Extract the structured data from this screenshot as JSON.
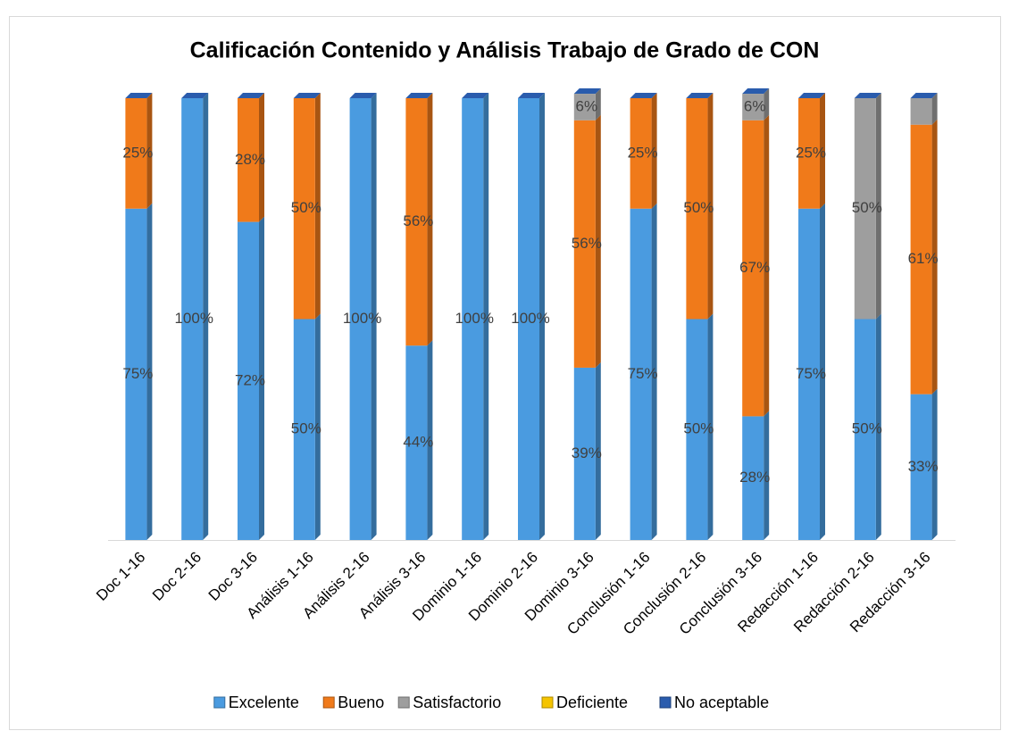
{
  "chart_data": {
    "type": "stacked_bar",
    "title": "Calificación Contenido y Análisis Trabajo de Grado de CON",
    "categories": [
      "Doc 1-16",
      "Doc 2-16",
      "Doc 3-16",
      "Análisis 1-16",
      "Análisis 2-16",
      "Análisis 3-16",
      "Dominio 1-16",
      "Dominio 2-16",
      "Dominio 3-16",
      "Conclusión 1-16",
      "Conclusión 2-16",
      "Conclusión 3-16",
      "Redacción 1-16",
      "Redacción 2-16",
      "Redacción 3-16"
    ],
    "series": [
      {
        "name": "Excelente",
        "color": "#4a9be0",
        "values": [
          75,
          100,
          72,
          50,
          100,
          44,
          100,
          100,
          39,
          75,
          50,
          28,
          75,
          50,
          33
        ],
        "value_labels": [
          "75%",
          "100%",
          "72%",
          "50%",
          "100%",
          "44%",
          "100%",
          "100%",
          "39%",
          "75%",
          "50%",
          "28%",
          "75%",
          "50%",
          "33%"
        ]
      },
      {
        "name": "Bueno",
        "color": "#f07a1a",
        "values": [
          25,
          0,
          28,
          50,
          0,
          56,
          0,
          0,
          56,
          25,
          50,
          67,
          25,
          0,
          61
        ],
        "value_labels": [
          "25%",
          null,
          "28%",
          "50%",
          null,
          "56%",
          null,
          null,
          "56%",
          "25%",
          "50%",
          "67%",
          "25%",
          null,
          "61%"
        ]
      },
      {
        "name": "Satisfactorio",
        "color": "#9e9e9e",
        "values": [
          0,
          0,
          0,
          0,
          0,
          0,
          0,
          0,
          6,
          0,
          0,
          6,
          0,
          50,
          6
        ],
        "value_labels": [
          null,
          null,
          null,
          null,
          null,
          null,
          null,
          null,
          "6%",
          null,
          null,
          "6%",
          null,
          "50%",
          null
        ]
      },
      {
        "name": "Deficiente",
        "color": "#f5c400",
        "values": [
          0,
          0,
          0,
          0,
          0,
          0,
          0,
          0,
          0,
          0,
          0,
          0,
          0,
          0,
          0
        ]
      },
      {
        "name": "No aceptable",
        "color": "#2a5cad",
        "values": [
          0,
          0,
          0,
          0,
          0,
          0,
          0,
          0,
          0,
          0,
          0,
          0,
          0,
          0,
          0
        ]
      }
    ],
    "ylim": [
      0,
      100
    ]
  }
}
